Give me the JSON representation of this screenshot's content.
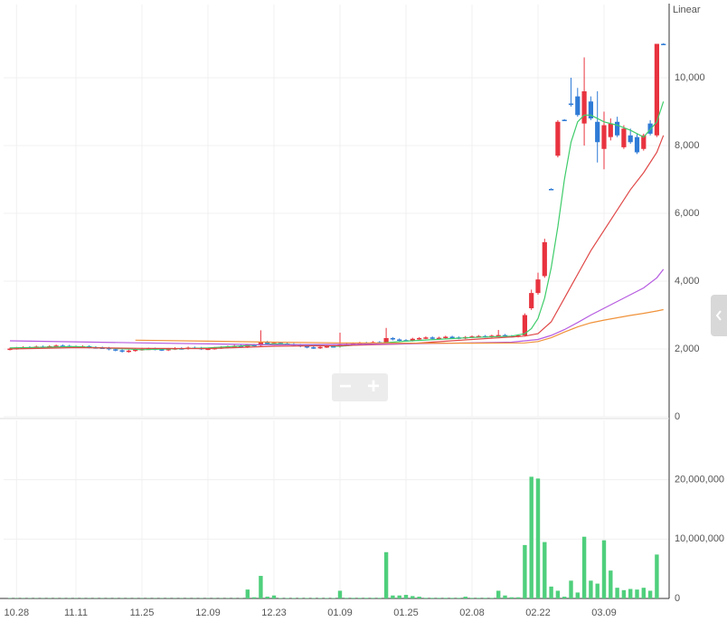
{
  "chart_data": {
    "type": "candlestick",
    "axis_label": "Linear",
    "categories": [
      null,
      "10.28",
      null,
      null,
      null,
      null,
      null,
      null,
      null,
      null,
      "11.11",
      null,
      null,
      null,
      null,
      null,
      null,
      null,
      null,
      null,
      "11.25",
      null,
      null,
      null,
      null,
      null,
      null,
      null,
      null,
      null,
      "12.09",
      null,
      null,
      null,
      null,
      null,
      null,
      null,
      null,
      null,
      "12.23",
      null,
      null,
      null,
      null,
      null,
      null,
      null,
      null,
      null,
      "01.09",
      null,
      null,
      null,
      null,
      null,
      null,
      null,
      null,
      null,
      "01.25",
      null,
      null,
      null,
      null,
      null,
      null,
      null,
      null,
      null,
      "02.08",
      null,
      null,
      null,
      null,
      null,
      null,
      null,
      null,
      null,
      "02.22",
      null,
      null,
      null,
      null,
      null,
      null,
      null,
      null,
      null,
      "03.09",
      null,
      null,
      null,
      null,
      null,
      null,
      null,
      null,
      null
    ],
    "open": [
      1990,
      2010,
      2030,
      2050,
      2040,
      2070,
      2060,
      2080,
      2100,
      2090,
      2070,
      2060,
      2080,
      2050,
      2040,
      2030,
      1990,
      1960,
      1920,
      1950,
      1980,
      2000,
      2010,
      1990,
      1970,
      2000,
      2020,
      2010,
      2040,
      2030,
      2000,
      2010,
      2030,
      2050,
      2070,
      2090,
      2060,
      2120,
      2100,
      2210,
      2150,
      2180,
      2160,
      2140,
      2120,
      2080,
      2050,
      2030,
      2060,
      2080,
      2070,
      2120,
      2140,
      2160,
      2180,
      2170,
      2200,
      2190,
      2320,
      2280,
      2260,
      2250,
      2300,
      2320,
      2340,
      2300,
      2330,
      2360,
      2340,
      2320,
      2350,
      2370,
      2380,
      2360,
      2390,
      2410,
      2380,
      2370,
      2400,
      3200,
      3650,
      4150,
      6720,
      7700,
      8760,
      9240,
      9450,
      8650,
      9300,
      8700,
      7900,
      8250,
      8700,
      7950,
      8300,
      8250,
      7900,
      8650,
      8300,
      11000
    ],
    "high": [
      2040,
      2060,
      2080,
      2080,
      2100,
      2100,
      2110,
      2130,
      2130,
      2120,
      2100,
      2110,
      2110,
      2080,
      2070,
      2060,
      2020,
      1990,
      1980,
      2010,
      2030,
      2040,
      2040,
      2020,
      2030,
      2050,
      2050,
      2070,
      2070,
      2060,
      2040,
      2060,
      2080,
      2100,
      2120,
      2120,
      2150,
      2150,
      2550,
      2240,
      2210,
      2210,
      2190,
      2170,
      2150,
      2110,
      2080,
      2090,
      2110,
      2110,
      2480,
      2170,
      2190,
      2210,
      2210,
      2230,
      2230,
      2620,
      2350,
      2310,
      2290,
      2330,
      2350,
      2370,
      2370,
      2360,
      2390,
      2390,
      2370,
      2380,
      2400,
      2410,
      2410,
      2420,
      2560,
      2440,
      2410,
      2430,
      3050,
      3750,
      4250,
      5250,
      6740,
      8750,
      8780,
      10000,
      9700,
      10600,
      9450,
      9600,
      9000,
      8800,
      8850,
      8600,
      8500,
      8350,
      8350,
      8750,
      11000,
      11020
    ],
    "low": [
      1960,
      1980,
      2000,
      2010,
      2010,
      2030,
      2030,
      2050,
      2060,
      2040,
      2030,
      2030,
      2020,
      2010,
      2000,
      1960,
      1930,
      1890,
      1890,
      1920,
      1950,
      1970,
      1960,
      1940,
      1940,
      1970,
      1980,
      1980,
      2000,
      1970,
      1970,
      1980,
      2000,
      2020,
      2040,
      2030,
      2030,
      2070,
      2070,
      2120,
      2120,
      2130,
      2110,
      2090,
      2050,
      2020,
      2000,
      2000,
      2030,
      2040,
      2040,
      2090,
      2110,
      2130,
      2140,
      2140,
      2160,
      2160,
      2250,
      2230,
      2220,
      2220,
      2270,
      2290,
      2270,
      2270,
      2300,
      2310,
      2290,
      2290,
      2320,
      2340,
      2330,
      2330,
      2360,
      2350,
      2340,
      2340,
      2380,
      3150,
      3600,
      4100,
      6680,
      7650,
      8740,
      9150,
      8850,
      8000,
      8750,
      7500,
      7300,
      8150,
      8250,
      7900,
      8050,
      7750,
      7850,
      8300,
      8250,
      10980
    ],
    "close": [
      2010,
      2030,
      2050,
      2040,
      2070,
      2060,
      2080,
      2100,
      2090,
      2070,
      2060,
      2080,
      2050,
      2040,
      2030,
      1990,
      1960,
      1920,
      1950,
      1980,
      2000,
      2010,
      1990,
      1970,
      2000,
      2020,
      2010,
      2040,
      2030,
      2000,
      2010,
      2030,
      2050,
      2070,
      2090,
      2060,
      2120,
      2100,
      2210,
      2150,
      2180,
      2160,
      2140,
      2120,
      2080,
      2050,
      2030,
      2060,
      2080,
      2070,
      2120,
      2140,
      2160,
      2180,
      2170,
      2200,
      2190,
      2320,
      2280,
      2260,
      2250,
      2300,
      2320,
      2340,
      2300,
      2330,
      2360,
      2340,
      2320,
      2350,
      2370,
      2380,
      2360,
      2390,
      2410,
      2380,
      2370,
      2400,
      3000,
      3650,
      4050,
      5150,
      6700,
      8700,
      8750,
      9200,
      8900,
      9600,
      8800,
      8100,
      8600,
      8650,
      8300,
      8500,
      8100,
      7800,
      8300,
      8350,
      11000,
      10990
    ],
    "up_color": "#e8333f",
    "down_color": "#2f7bd6",
    "ylim": [
      0,
      12000
    ],
    "yticks": [
      0,
      {
        "value": 2000,
        "label": "2,000"
      },
      {
        "value": 4000,
        "label": "4,000"
      },
      {
        "value": 6000,
        "label": "6,000"
      },
      {
        "value": 8000,
        "label": "8,000"
      },
      {
        "value": 10000,
        "label": "10,000"
      }
    ],
    "lines": [
      {
        "color": "#3fcc6a",
        "x": [
          0,
          10,
          20,
          30,
          40,
          50,
          60,
          70,
          76,
          78,
          79,
          80,
          81,
          82,
          83,
          84,
          85,
          86,
          87,
          88,
          90,
          92,
          94,
          96,
          98,
          99
        ],
        "values": [
          2030,
          2070,
          1980,
          2030,
          2150,
          2080,
          2230,
          2340,
          2380,
          2450,
          2600,
          2900,
          3500,
          4400,
          5600,
          7000,
          8100,
          8700,
          8900,
          8900,
          8700,
          8600,
          8450,
          8250,
          8700,
          9300
        ]
      },
      {
        "color": "#e04848",
        "x": [
          0,
          10,
          20,
          30,
          40,
          50,
          60,
          70,
          78,
          80,
          82,
          84,
          86,
          88,
          90,
          92,
          94,
          96,
          98,
          99
        ],
        "values": [
          2000,
          2040,
          2020,
          2010,
          2080,
          2100,
          2150,
          2280,
          2380,
          2450,
          2800,
          3500,
          4200,
          4900,
          5500,
          6100,
          6700,
          7200,
          7800,
          8300
        ]
      },
      {
        "color": "#b65ce0",
        "x": [
          0,
          20,
          40,
          60,
          76,
          80,
          82,
          84,
          86,
          88,
          90,
          92,
          94,
          96,
          98,
          99
        ],
        "values": [
          2240,
          2180,
          2120,
          2150,
          2200,
          2280,
          2400,
          2570,
          2780,
          3000,
          3200,
          3400,
          3600,
          3800,
          4100,
          4350
        ]
      },
      {
        "color": "#f0923a",
        "x": [
          19,
          30,
          40,
          50,
          60,
          70,
          78,
          80,
          82,
          84,
          86,
          88,
          90,
          92,
          94,
          96,
          98,
          99
        ],
        "values": [
          2260,
          2230,
          2200,
          2180,
          2170,
          2170,
          2180,
          2220,
          2330,
          2500,
          2650,
          2770,
          2850,
          2920,
          2990,
          3050,
          3120,
          3160
        ]
      }
    ],
    "volume": [
      50000,
      50000,
      50000,
      50000,
      50000,
      50000,
      50000,
      50000,
      50000,
      50000,
      50000,
      50000,
      50000,
      50000,
      50000,
      50000,
      50000,
      50000,
      50000,
      50000,
      50000,
      50000,
      50000,
      50000,
      50000,
      50000,
      50000,
      50000,
      50000,
      50000,
      50000,
      50000,
      50000,
      50000,
      50000,
      50000,
      1500000,
      200000,
      3800000,
      300000,
      500000,
      80000,
      80000,
      80000,
      80000,
      80000,
      80000,
      80000,
      80000,
      80000,
      1300000,
      100000,
      100000,
      100000,
      100000,
      100000,
      100000,
      7800000,
      500000,
      500000,
      600000,
      400000,
      300000,
      100000,
      100000,
      100000,
      100000,
      100000,
      100000,
      300000,
      100000,
      100000,
      100000,
      100000,
      1300000,
      500000,
      200000,
      200000,
      9000000,
      20500000,
      20200000,
      9500000,
      2000000,
      1300000,
      300000,
      3000000,
      1000000,
      10400000,
      3000000,
      2500000,
      9800000,
      4700000,
      1800000,
      1400000,
      1600000,
      1500000,
      1800000,
      1300000,
      7400000,
      0
    ],
    "volume_color": "#4fcf7c",
    "y2lim": [
      0,
      30000000
    ],
    "y2ticks": [
      0,
      {
        "value": 10000000,
        "label": "10,000,000"
      },
      {
        "value": 20000000,
        "label": "20,000,000"
      }
    ],
    "grid": true
  }
}
